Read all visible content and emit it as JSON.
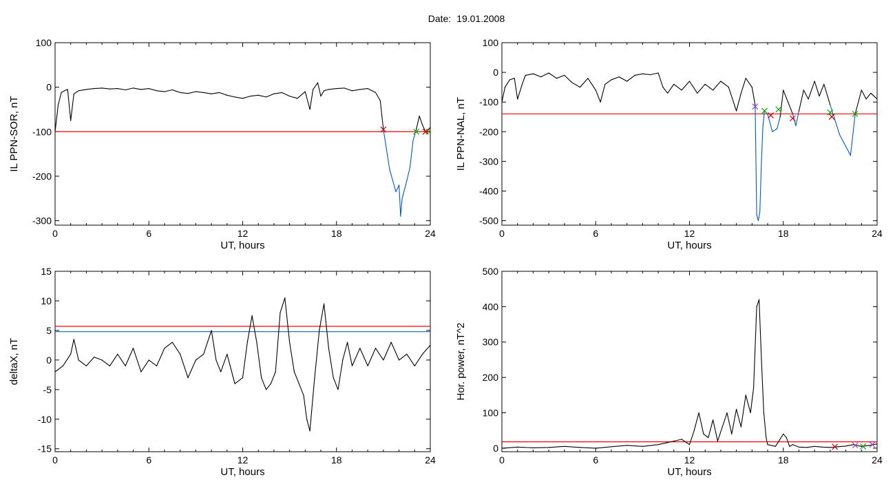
{
  "title": {
    "label": "Date:",
    "value": "19.01.2008"
  },
  "colors": {
    "curve": "#000000",
    "threshold": "#ff0000",
    "highlight": "#0055cc",
    "second_threshold": "#1a78c2",
    "marker_red": "#cc0000",
    "marker_green": "#00aa00",
    "marker_purple": "#8844cc"
  },
  "chart_data": [
    {
      "id": "sor",
      "type": "line",
      "xlabel": "UT, hours",
      "ylabel": "IL PPN-SOR, nT",
      "xlim": [
        0,
        24
      ],
      "ylim": [
        -310,
        100
      ],
      "xticks": [
        0,
        6,
        12,
        18,
        24
      ],
      "yticks": [
        -300,
        -200,
        -100,
        0,
        100
      ],
      "threshold": -100,
      "series": [
        {
          "x": [
            0,
            0.2,
            0.4,
            0.6,
            0.8,
            1.0,
            1.2,
            1.5,
            2.0,
            2.5,
            3.0,
            3.5,
            4.0,
            4.5,
            5.0,
            5.5,
            6.0,
            6.5,
            7.0,
            7.5,
            8.0,
            8.5,
            9.0,
            9.5,
            10.0,
            10.5,
            11.0,
            11.5,
            12.0,
            12.5,
            13.0,
            13.5,
            14.0,
            14.5,
            15.0,
            15.5,
            16.0,
            16.3,
            16.5,
            16.8,
            17.0,
            17.2,
            17.5,
            18.0,
            18.5,
            19.0,
            19.5,
            20.0,
            20.5,
            20.8,
            21.0
          ],
          "y": [
            -100,
            -40,
            -12,
            -8,
            -5,
            -75,
            -15,
            -8,
            -5,
            -3,
            -2,
            -4,
            -3,
            -6,
            -2,
            -5,
            -3,
            -8,
            -10,
            -6,
            -12,
            -14,
            -10,
            -12,
            -15,
            -12,
            -18,
            -22,
            -25,
            -20,
            -18,
            -22,
            -15,
            -12,
            -20,
            -25,
            -10,
            -50,
            -5,
            10,
            -20,
            -8,
            -5,
            -3,
            -2,
            -8,
            -5,
            -3,
            -12,
            -30,
            -95
          ]
        },
        {
          "x": [
            21.0,
            21.2,
            21.4,
            21.6,
            21.8,
            22.0,
            22.1,
            22.2,
            22.35,
            22.5,
            22.7,
            22.9,
            23.1
          ],
          "y": [
            -95,
            -140,
            -185,
            -210,
            -235,
            -220,
            -290,
            -250,
            -230,
            -210,
            -180,
            -120,
            -95
          ]
        },
        {
          "x": [
            23.1,
            23.3,
            23.5,
            23.7,
            23.9,
            24.0
          ],
          "y": [
            -95,
            -65,
            -85,
            -100,
            -95,
            -90
          ]
        }
      ],
      "markers": [
        {
          "x": 21.0,
          "y": -95,
          "color": "marker_red"
        },
        {
          "x": 23.1,
          "y": -100,
          "color": "marker_green"
        },
        {
          "x": 23.9,
          "y": -100,
          "color": "marker_green"
        },
        {
          "x": 23.7,
          "y": -100,
          "color": "marker_red"
        }
      ]
    },
    {
      "id": "nal",
      "type": "line",
      "xlabel": "UT, hours",
      "ylabel": "IL PPN-NAL, nT",
      "xlim": [
        0,
        24
      ],
      "ylim": [
        -515,
        100
      ],
      "xticks": [
        0,
        6,
        12,
        18,
        24
      ],
      "yticks": [
        -500,
        -400,
        -300,
        -200,
        -100,
        0,
        100
      ],
      "threshold": -140,
      "series": [
        {
          "x": [
            0,
            0.2,
            0.5,
            0.8,
            1.0,
            1.3,
            1.5,
            2.0,
            2.5,
            3.0,
            3.5,
            4.0,
            4.5,
            5.0,
            5.5,
            6.0,
            6.3,
            6.6,
            7.0,
            7.5,
            8.0,
            8.5,
            9.0,
            9.5,
            10.0,
            10.3,
            10.6,
            11.0,
            11.5,
            12.0,
            12.5,
            13.0,
            13.5,
            14.0,
            14.5,
            15.0,
            15.3,
            15.6,
            16.0,
            16.2
          ],
          "y": [
            -100,
            -50,
            -25,
            -20,
            -90,
            -40,
            -10,
            -5,
            -15,
            -2,
            -20,
            -10,
            -35,
            -50,
            -20,
            -60,
            -100,
            -40,
            -25,
            -15,
            -30,
            -10,
            -5,
            -8,
            -2,
            -50,
            -70,
            -40,
            -60,
            -30,
            -70,
            -40,
            -60,
            -30,
            -50,
            -130,
            -70,
            -20,
            -50,
            -110
          ]
        },
        {
          "x": [
            16.2,
            16.3,
            16.4,
            16.5,
            16.6,
            16.7,
            16.8,
            17.0,
            17.3,
            17.6,
            17.8
          ],
          "y": [
            -110,
            -480,
            -500,
            -470,
            -300,
            -180,
            -130,
            -140,
            -200,
            -190,
            -150
          ]
        },
        {
          "x": [
            17.8,
            18.0,
            18.3,
            18.6
          ],
          "y": [
            -150,
            -60,
            -100,
            -140
          ]
        },
        {
          "x": [
            18.6,
            18.8,
            19.0
          ],
          "y": [
            -140,
            -180,
            -130
          ]
        },
        {
          "x": [
            19.0,
            19.3,
            19.6,
            20.0,
            20.3,
            20.6,
            21.0
          ],
          "y": [
            -130,
            -60,
            -90,
            -30,
            -80,
            -40,
            -110
          ]
        },
        {
          "x": [
            21.0,
            21.3,
            21.6,
            22.0,
            22.3,
            22.6
          ],
          "y": [
            -110,
            -160,
            -210,
            -250,
            -280,
            -140
          ]
        },
        {
          "x": [
            22.6,
            23.0,
            23.3,
            23.6,
            24.0
          ],
          "y": [
            -140,
            -60,
            -90,
            -70,
            -90
          ]
        }
      ],
      "markers": [
        {
          "x": 16.2,
          "y": -115,
          "color": "marker_purple"
        },
        {
          "x": 16.8,
          "y": -130,
          "color": "marker_green"
        },
        {
          "x": 17.2,
          "y": -145,
          "color": "marker_red"
        },
        {
          "x": 17.7,
          "y": -125,
          "color": "marker_green"
        },
        {
          "x": 18.6,
          "y": -155,
          "color": "marker_red"
        },
        {
          "x": 21.0,
          "y": -135,
          "color": "marker_green"
        },
        {
          "x": 21.1,
          "y": -150,
          "color": "marker_red"
        },
        {
          "x": 22.6,
          "y": -140,
          "color": "marker_green"
        }
      ]
    },
    {
      "id": "deltax",
      "type": "line",
      "xlabel": "UT, hours",
      "ylabel": "deltaX, nT",
      "xlim": [
        0,
        24
      ],
      "ylim": [
        -15.5,
        15
      ],
      "xticks": [
        0,
        6,
        12,
        18,
        24
      ],
      "yticks": [
        -15,
        -10,
        -5,
        0,
        5,
        10,
        15
      ],
      "threshold": 5.7,
      "threshold2": 4.8,
      "series": [
        {
          "x": [
            0,
            0.5,
            1.0,
            1.2,
            1.5,
            2.0,
            2.5,
            3.0,
            3.5,
            4.0,
            4.5,
            5.0,
            5.5,
            6.0,
            6.5,
            7.0,
            7.5,
            8.0,
            8.5,
            9.0,
            9.5,
            10.0,
            10.3,
            10.6,
            11.0,
            11.5,
            12.0,
            12.3,
            12.6,
            12.9,
            13.2,
            13.5,
            13.8,
            14.1,
            14.4,
            14.7,
            15.0,
            15.3,
            15.6,
            15.9,
            16.1,
            16.3,
            16.6,
            16.9,
            17.2,
            17.5,
            17.8,
            18.1,
            18.4,
            18.7,
            19.0,
            19.5,
            20.0,
            20.5,
            21.0,
            21.5,
            22.0,
            22.5,
            23.0,
            23.5,
            24.0
          ],
          "y": [
            -2,
            -1,
            1,
            3.5,
            0,
            -1,
            0.5,
            0,
            -1,
            1,
            -1,
            2,
            -2,
            0,
            -1,
            2,
            3,
            1,
            -3,
            0,
            1,
            5,
            0,
            -2,
            1,
            -4,
            -3,
            3,
            7.5,
            3,
            -3,
            -5,
            -4,
            -2,
            8,
            10.5,
            3,
            -2,
            -4,
            -6,
            -10,
            -12,
            -3,
            5,
            9.5,
            2,
            -3,
            -5,
            0,
            3,
            -1,
            2,
            -1,
            2,
            0,
            3,
            0,
            1,
            -1,
            1,
            2.5
          ]
        }
      ]
    },
    {
      "id": "power",
      "type": "line",
      "xlabel": "UT, hours",
      "ylabel": "Hor. power, nT^2",
      "xlim": [
        0,
        24
      ],
      "ylim": [
        -10,
        500
      ],
      "xticks": [
        0,
        6,
        12,
        18,
        24
      ],
      "yticks": [
        0,
        100,
        200,
        300,
        400,
        500
      ],
      "threshold": 18,
      "series": [
        {
          "x": [
            0,
            1,
            2,
            3,
            4,
            5,
            6,
            7,
            8,
            9,
            10,
            10.5,
            11,
            11.5,
            12,
            12.3,
            12.6,
            12.9,
            13.2,
            13.5,
            13.8,
            14.1,
            14.4,
            14.7,
            15.0,
            15.3,
            15.6,
            15.9,
            16.1,
            16.3,
            16.45,
            16.6,
            16.75,
            16.9,
            17.0,
            17.5,
            18.0,
            18.2,
            18.4,
            18.6,
            19.0,
            19.5,
            20.0,
            20.5,
            21.0,
            21.5,
            22.0,
            22.5,
            23.0,
            23.5,
            24.0
          ],
          "y": [
            0,
            3,
            1,
            2,
            5,
            2,
            0,
            4,
            8,
            5,
            10,
            15,
            20,
            25,
            10,
            50,
            100,
            40,
            30,
            80,
            20,
            60,
            100,
            40,
            110,
            60,
            150,
            100,
            170,
            400,
            420,
            250,
            100,
            30,
            10,
            5,
            40,
            30,
            5,
            10,
            3,
            2,
            5,
            3,
            2,
            4,
            6,
            10,
            5,
            8,
            12
          ]
        }
      ],
      "markers": [
        {
          "x": 21.3,
          "y": 4,
          "color": "marker_red"
        },
        {
          "x": 22.6,
          "y": 8,
          "color": "marker_purple"
        },
        {
          "x": 23.1,
          "y": 5,
          "color": "marker_green"
        },
        {
          "x": 23.7,
          "y": 10,
          "color": "marker_purple"
        }
      ]
    }
  ]
}
